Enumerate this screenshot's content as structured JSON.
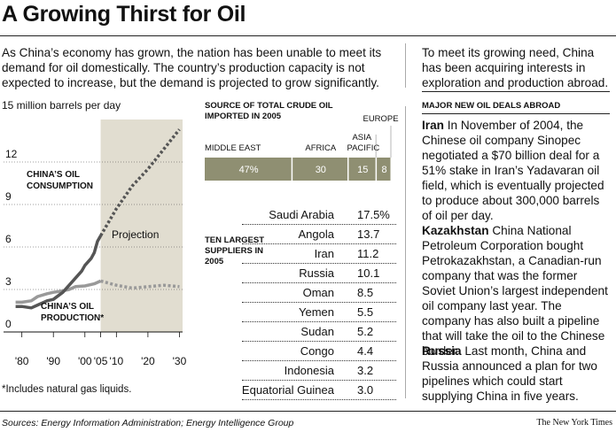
{
  "header": {
    "headline": "A Growing Thirst for Oil",
    "intro": "As China’s economy has grown, the nation has been unable to meet its demand for oil domestically. The country’s production capacity is not expected to increase, but the demand is projected to grow significantly."
  },
  "aside": {
    "text": "To meet its growing need, China has been acquiring interests in exploration and production abroad.",
    "deals_heading": "MAJOR NEW OIL DEALS ABROAD",
    "deals": [
      {
        "country": "Iran",
        "text": " In November of 2004, the Chinese oil company Sinopec negotiated a $70 billion deal for a 51% stake in Iran’s Yadavaran oil field, which is eventually projected to produce about 300,000 barrels of oil per day."
      },
      {
        "country": "Kazakhstan",
        "text": " China National Petroleum Corporation bought Petrokazakhstan, a Canadian-run company that was the former Soviet Union’s largest independent oil company last year. The company has also built a pipeline that will take the oil to the Chinese border."
      },
      {
        "country": "Russia",
        "text": " Last month, China and Russia announced a plan for two pipelines which could start supplying China in five years."
      }
    ]
  },
  "footnote": "*Includes natural gas liquids.",
  "sources": "Sources: Energy Information Administration; Energy Intelligence Group",
  "credit": "The New York Times",
  "colors": {
    "projection_band": "#e1ddd0",
    "consumption": "#555555",
    "production": "#999999",
    "bar": "#8f8f72",
    "bar_text": "#ffffff"
  },
  "chart_data": [
    {
      "type": "line",
      "ylabel": "15 million barrels per day",
      "ylim": [
        0,
        15
      ],
      "xlim": [
        1977,
        2031
      ],
      "y_ticks": [
        "0",
        "3",
        "6",
        "9",
        "12"
      ],
      "y_tick_values": [
        0,
        3,
        6,
        9,
        12
      ],
      "x_ticks": [
        "'80",
        "'90",
        "'00",
        "'05",
        "'10",
        "'20",
        "'30"
      ],
      "x_tick_values": [
        1980,
        1990,
        2000,
        2005,
        2010,
        2020,
        2030
      ],
      "projection_start": 2005,
      "projection_label": "Projection",
      "series": [
        {
          "name": "CHINA’S OIL CONSUMPTION",
          "points": [
            [
              1978,
              1.8
            ],
            [
              1980,
              1.8
            ],
            [
              1983,
              1.7
            ],
            [
              1985,
              1.9
            ],
            [
              1988,
              2.2
            ],
            [
              1990,
              2.3
            ],
            [
              1993,
              2.8
            ],
            [
              1995,
              3.3
            ],
            [
              1997,
              3.8
            ],
            [
              1999,
              4.3
            ],
            [
              2000,
              4.7
            ],
            [
              2002,
              5.2
            ],
            [
              2003,
              5.6
            ],
            [
              2004,
              6.4
            ],
            [
              2005,
              6.8
            ]
          ],
          "projection": [
            [
              2005,
              6.8
            ],
            [
              2010,
              8.7
            ],
            [
              2015,
              10.3
            ],
            [
              2020,
              11.5
            ],
            [
              2025,
              12.9
            ],
            [
              2030,
              14.3
            ]
          ]
        },
        {
          "name": "CHINA’S OIL PRODUCTION*",
          "points": [
            [
              1978,
              2.1
            ],
            [
              1980,
              2.1
            ],
            [
              1983,
              2.2
            ],
            [
              1985,
              2.5
            ],
            [
              1988,
              2.7
            ],
            [
              1990,
              2.8
            ],
            [
              1993,
              2.9
            ],
            [
              1995,
              3.0
            ],
            [
              1997,
              3.2
            ],
            [
              2000,
              3.25
            ],
            [
              2003,
              3.4
            ],
            [
              2005,
              3.6
            ]
          ],
          "projection": [
            [
              2005,
              3.6
            ],
            [
              2010,
              3.3
            ],
            [
              2015,
              3.1
            ],
            [
              2020,
              3.2
            ],
            [
              2025,
              3.3
            ],
            [
              2030,
              3.2
            ]
          ]
        }
      ]
    },
    {
      "type": "bar",
      "title": "SOURCE OF TOTAL CRUDE OIL IMPORTED IN 2005",
      "orientation": "stacked-horizontal",
      "categories": [
        "MIDDLE EAST",
        "AFRICA",
        "ASIA PACIFIC",
        "EUROPE"
      ],
      "values": [
        47,
        30,
        15,
        8
      ],
      "value_labels": [
        "47%",
        "30",
        "15",
        "8"
      ]
    },
    {
      "type": "table",
      "title": "TEN LARGEST SUPPLIERS IN 2005",
      "rows": [
        {
          "country": "Saudi Arabia",
          "value": "17.5%"
        },
        {
          "country": "Angola",
          "value": "13.7"
        },
        {
          "country": "Iran",
          "value": "11.2"
        },
        {
          "country": "Russia",
          "value": "10.1"
        },
        {
          "country": "Oman",
          "value": "8.5"
        },
        {
          "country": "Yemen",
          "value": "5.5"
        },
        {
          "country": "Sudan",
          "value": "5.2"
        },
        {
          "country": "Congo",
          "value": "4.4"
        },
        {
          "country": "Indonesia",
          "value": "3.2"
        },
        {
          "country": "Equatorial Guinea",
          "value": "3.0"
        }
      ]
    }
  ]
}
